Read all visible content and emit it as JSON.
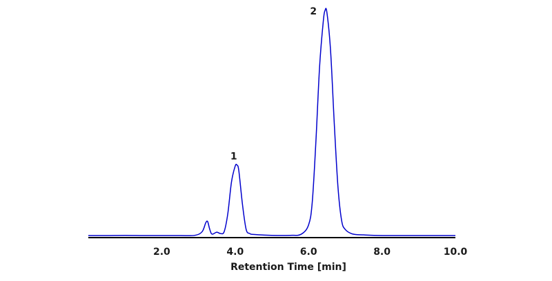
{
  "chart_data": {
    "type": "line",
    "title": "",
    "xlabel": "Retention Time [min]",
    "ylabel": "",
    "xlim": [
      0.0,
      10.0
    ],
    "ylim": [
      0,
      100
    ],
    "x_ticks": [
      "2.0",
      "4.0",
      "6.0",
      "8.0",
      "10.0"
    ],
    "grid": false,
    "colors": {
      "trace": "#0000cc",
      "axis": "#000000"
    },
    "series": [
      {
        "x": [
          0.0,
          0.5,
          1.0,
          1.5,
          2.0,
          2.5,
          2.9,
          3.1,
          3.2,
          3.25,
          3.3,
          3.35,
          3.4,
          3.5,
          3.6,
          3.7,
          3.8,
          3.9,
          4.0,
          4.05,
          4.1,
          4.2,
          4.3,
          4.4,
          4.5,
          5.0,
          5.5,
          5.8,
          6.0,
          6.1,
          6.2,
          6.3,
          6.4,
          6.45,
          6.5,
          6.6,
          6.7,
          6.8,
          6.9,
          7.0,
          7.2,
          7.5,
          8.0,
          9.0,
          10.0
        ],
        "y": [
          0.3,
          0.3,
          0.4,
          0.3,
          0.3,
          0.3,
          0.4,
          2.0,
          6.0,
          6.5,
          3.5,
          1.2,
          1.0,
          1.8,
          1.2,
          2.0,
          10.0,
          24.0,
          31.0,
          31.5,
          29.0,
          14.0,
          3.0,
          1.2,
          0.8,
          0.4,
          0.4,
          0.9,
          5.0,
          15.0,
          42.0,
          75.0,
          95.0,
          100.0,
          99.0,
          82.0,
          50.0,
          22.0,
          7.0,
          3.0,
          1.0,
          0.6,
          0.3,
          0.3,
          0.3
        ]
      }
    ],
    "annotations": [
      {
        "text": "1",
        "x": 4.0,
        "y": 31.5
      },
      {
        "text": "2",
        "x": 6.45,
        "y": 100.0
      }
    ]
  }
}
